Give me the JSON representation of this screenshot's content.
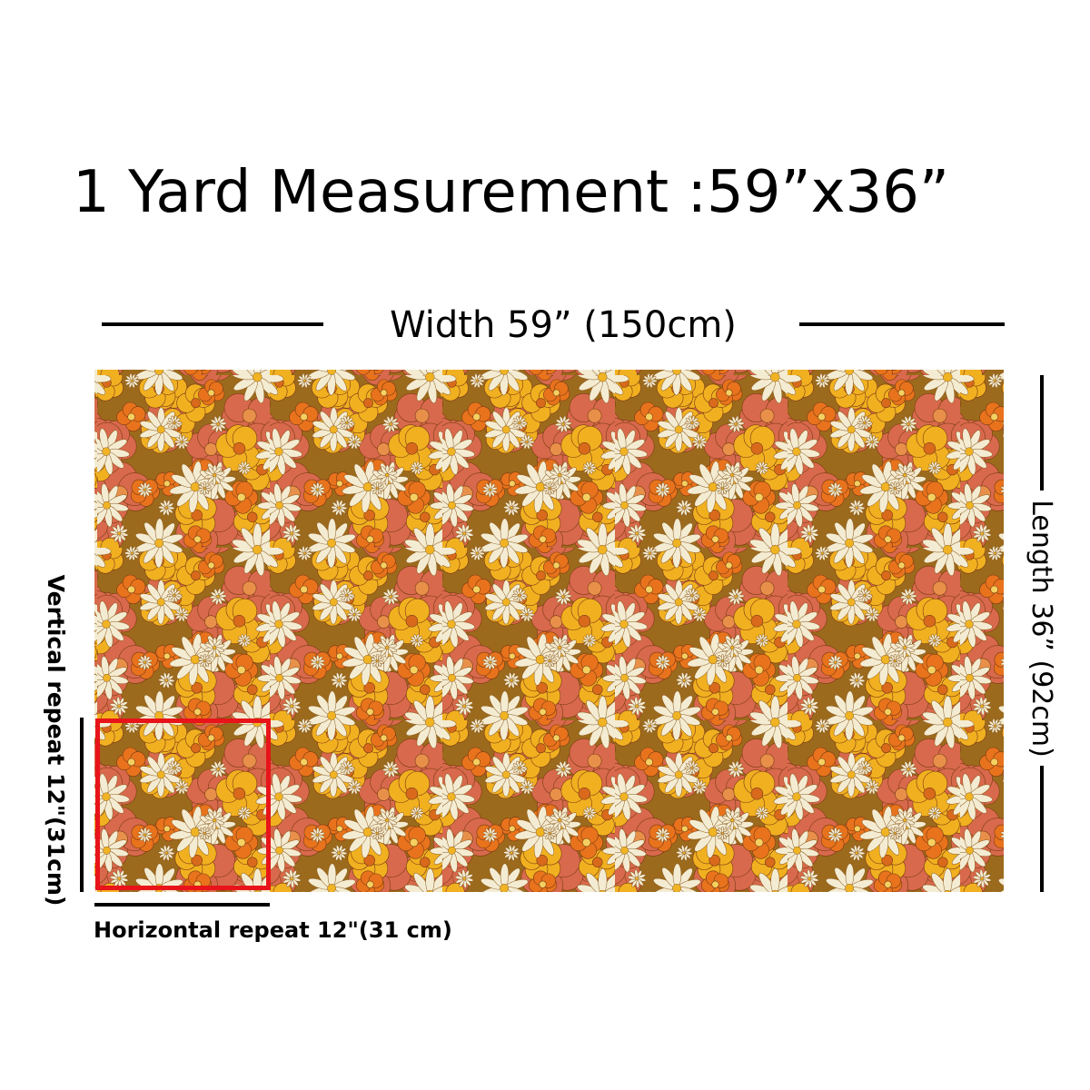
{
  "title": "1 Yard Measurement :59”x36”",
  "width_label": "Width 59”  (150cm)",
  "length_label": "Length 36”  (92cm)",
  "vertical_repeat_label": "Vertical repeat 12\"(31cm)",
  "horizontal_repeat_label": "Horizontal repeat 12\"(31 cm)"
}
